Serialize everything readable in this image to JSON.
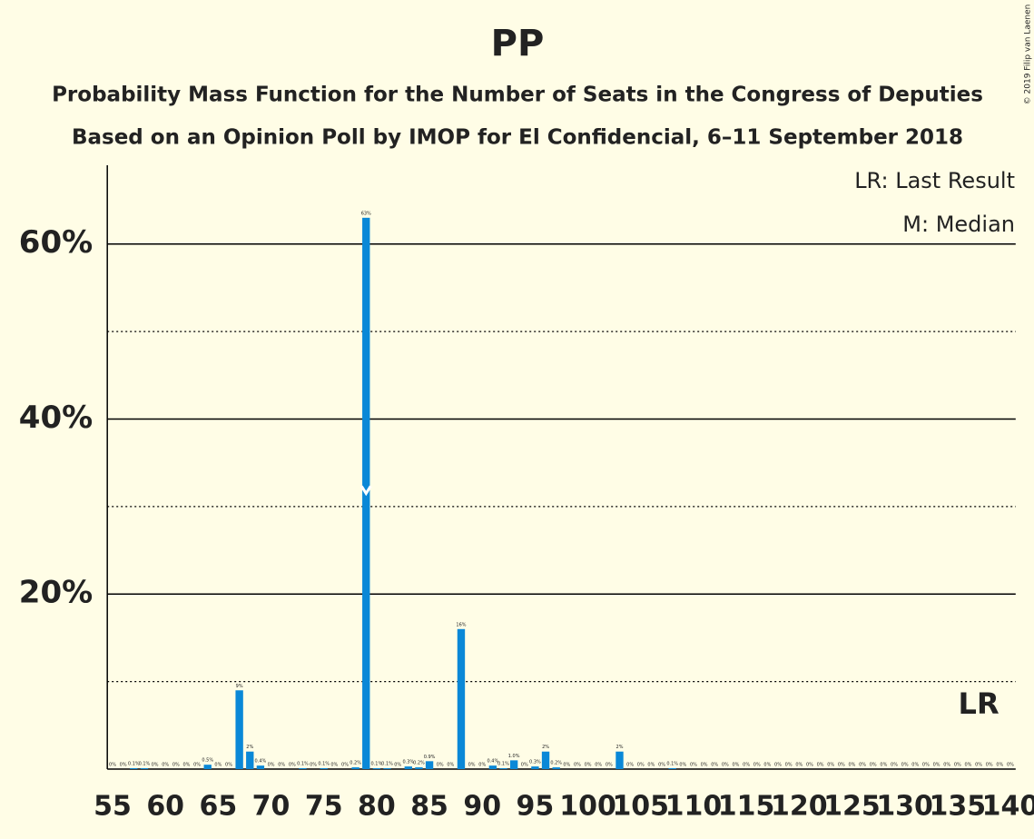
{
  "chart_data": {
    "type": "bar",
    "title": "PP",
    "subtitle": "Probability Mass Function for the Number of Seats in the Congress of Deputies",
    "subtitle2": "Based on an Opinion Poll by IMOP for El Confidencial, 6–11 September 2018",
    "copyright": "© 2019 Filip van Laenen",
    "legend": [
      "LR: Last Result",
      "M: Median"
    ],
    "last_result_label": "LR",
    "median": 79,
    "last_result": 137,
    "color": "#0a88d7",
    "categories": [
      55,
      null,
      null,
      null,
      null,
      60,
      null,
      null,
      null,
      null,
      65,
      null,
      null,
      null,
      null,
      70,
      null,
      null,
      null,
      null,
      75,
      null,
      null,
      null,
      null,
      80,
      null,
      null,
      null,
      null,
      85,
      null,
      null,
      null,
      null,
      90,
      null,
      null,
      null,
      null,
      95,
      null,
      null,
      null,
      null,
      100,
      null,
      null,
      null,
      null,
      105,
      null,
      null,
      null,
      null,
      110,
      null,
      null,
      null,
      null,
      115,
      null,
      null,
      null,
      null,
      120,
      null,
      null,
      null,
      null,
      125,
      null,
      null,
      null,
      null,
      130,
      null,
      null,
      null,
      null,
      135,
      null,
      null,
      null,
      null,
      140
    ],
    "values": [
      0,
      0,
      0.1,
      0.1,
      0,
      0,
      0,
      0,
      0,
      0.5,
      0,
      0,
      9,
      2,
      0.4,
      0,
      0,
      0,
      0.1,
      0,
      0.1,
      0,
      0,
      0.2,
      63,
      0.1,
      0.1,
      0,
      0.3,
      0.2,
      0.9,
      0,
      0,
      16,
      0,
      0,
      0.4,
      0.1,
      1.0,
      0,
      0.3,
      2,
      0.2,
      0,
      0,
      0,
      0,
      0,
      2,
      0,
      0,
      0,
      0,
      0.1,
      0,
      0,
      0,
      0,
      0,
      0,
      0,
      0,
      0,
      0,
      0,
      0,
      0,
      0,
      0,
      0,
      0,
      0,
      0,
      0,
      0,
      0,
      0,
      0,
      0,
      0,
      0,
      0,
      0,
      0,
      0,
      0
    ],
    "value_labels": [
      "0%",
      "0%",
      "0.1%",
      "0.1%",
      "0%",
      "0%",
      "0%",
      "0%",
      "0%",
      "0.5%",
      "0%",
      "0%",
      "9%",
      "2%",
      "0.4%",
      "0%",
      "0%",
      "0%",
      "0.1%",
      "0%",
      "0.1%",
      "0%",
      "0%",
      "0.2%",
      "63%",
      "0.1%",
      "0.1%",
      "0%",
      "0.3%",
      "0.2%",
      "0.9%",
      "0%",
      "0%",
      "16%",
      "0%",
      "0%",
      "0.4%",
      "0.1%",
      "1.0%",
      "0%",
      "0.3%",
      "2%",
      "0.2%",
      "0%",
      "0%",
      "0%",
      "0%",
      "0%",
      "2%",
      "0%",
      "0%",
      "0%",
      "0%",
      "0.1%",
      "0%",
      "0%",
      "0%",
      "0%",
      "0%",
      "0%",
      "0%",
      "0%",
      "0%",
      "0%",
      "0%",
      "0%",
      "0%",
      "0%",
      "0%",
      "0%",
      "0%",
      "0%",
      "0%",
      "0%",
      "0%",
      "0%",
      "0%",
      "0%",
      "0%",
      "0%",
      "0%",
      "0%",
      "0%",
      "0%",
      "0%",
      "0%"
    ],
    "ylim": [
      0,
      69
    ],
    "yticks": [
      {
        "value": 20,
        "label": "20%"
      },
      {
        "value": 40,
        "label": "40%"
      },
      {
        "value": 60,
        "label": "60%"
      }
    ],
    "minor_yticks": [
      10,
      30,
      50
    ],
    "grid": true
  }
}
